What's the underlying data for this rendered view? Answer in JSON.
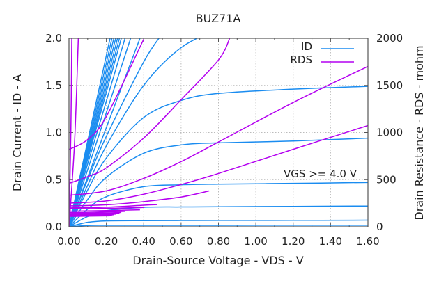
{
  "chart_data": {
    "type": "line",
    "title": "BUZ71A",
    "xlabel": "Drain-Source Voltage - VDS - V",
    "ylabel": "Drain Current - ID - A",
    "y2label": "Drain Resistance - RDS - mohm",
    "xlim": [
      0,
      1.6
    ],
    "ylim": [
      0,
      2.0
    ],
    "y2lim": [
      0,
      2000
    ],
    "grid": true,
    "legend_position": "top-right",
    "xticks": [
      "0.00",
      "0.20",
      "0.40",
      "0.60",
      "0.80",
      "1.00",
      "1.20",
      "1.40",
      "1.60"
    ],
    "yticks": [
      "0.0",
      "0.5",
      "1.0",
      "1.5",
      "2.0"
    ],
    "y2ticks": [
      "0",
      "500",
      "1000",
      "1500",
      "2000"
    ],
    "annotation": "VGS >= 4.0 V",
    "colors": {
      "ID": "#1a8cf0",
      "RDS": "#b400f0"
    },
    "series": [
      {
        "name": "ID",
        "axis": "y",
        "curves": [
          {
            "x": [
              0,
              0.1,
              0.2,
              0.4,
              0.6,
              0.8,
              1.2,
              1.6
            ],
            "y": [
              0,
              0.013,
              0.015,
              0.015,
              0.015,
              0.015,
              0.016,
              0.016
            ]
          },
          {
            "x": [
              0,
              0.1,
              0.2,
              0.4,
              0.6,
              0.8,
              1.2,
              1.6
            ],
            "y": [
              0,
              0.047,
              0.062,
              0.065,
              0.066,
              0.067,
              0.068,
              0.07
            ]
          },
          {
            "x": [
              0,
              0.1,
              0.2,
              0.4,
              0.6,
              0.8,
              1.2,
              1.6
            ],
            "y": [
              0,
              0.108,
              0.171,
              0.206,
              0.21,
              0.212,
              0.216,
              0.22
            ]
          },
          {
            "x": [
              0,
              0.1,
              0.2,
              0.4,
              0.6,
              0.8,
              1.2,
              1.6
            ],
            "y": [
              0,
              0.188,
              0.32,
              0.425,
              0.445,
              0.452,
              0.46,
              0.47
            ]
          },
          {
            "x": [
              0,
              0.1,
              0.2,
              0.4,
              0.6,
              0.8,
              1.2,
              1.6
            ],
            "y": [
              0,
              0.29,
              0.525,
              0.78,
              0.868,
              0.89,
              0.91,
              0.94
            ]
          },
          {
            "x": [
              0,
              0.1,
              0.2,
              0.4,
              0.6,
              0.8,
              1.2,
              1.6
            ],
            "y": [
              0,
              0.39,
              0.73,
              1.16,
              1.34,
              1.415,
              1.46,
              1.49
            ]
          },
          {
            "x": [
              0,
              0.1,
              0.2,
              0.4,
              0.6,
              0.8
            ],
            "y": [
              0,
              0.44,
              0.86,
              1.5,
              1.9,
              2.1
            ]
          },
          {
            "x": [
              0,
              0.1,
              0.2,
              0.4,
              0.5
            ],
            "y": [
              0,
              0.5,
              0.96,
              1.75,
              2.05
            ]
          },
          {
            "x": [
              0,
              0.38
            ],
            "y": [
              0,
              2.0
            ]
          },
          {
            "x": [
              0,
              0.33
            ],
            "y": [
              0,
              2.0
            ]
          },
          {
            "x": [
              0,
              0.3
            ],
            "y": [
              0,
              2.0
            ]
          },
          {
            "x": [
              0,
              0.28
            ],
            "y": [
              0,
              2.0
            ]
          },
          {
            "x": [
              0,
              0.27
            ],
            "y": [
              0,
              2.0
            ]
          },
          {
            "x": [
              0,
              0.26
            ],
            "y": [
              0,
              2.0
            ]
          },
          {
            "x": [
              0,
              0.25
            ],
            "y": [
              0,
              2.0
            ]
          },
          {
            "x": [
              0,
              0.24
            ],
            "y": [
              0,
              2.0
            ]
          },
          {
            "x": [
              0,
              0.23
            ],
            "y": [
              0,
              2.0
            ]
          },
          {
            "x": [
              0,
              0.22
            ],
            "y": [
              0,
              2.0
            ]
          }
        ]
      },
      {
        "name": "RDS",
        "axis": "y2",
        "curves": [
          {
            "x": [
              0,
              0.01,
              0.015
            ],
            "y": [
              0,
              1000,
              2000
            ]
          },
          {
            "x": [
              0,
              0.03,
              0.05
            ],
            "y": [
              0,
              900,
              2000
            ]
          },
          {
            "x": [
              0,
              0.1,
              0.2,
              0.4
            ],
            "y": [
              820,
              926,
              1170,
              1990
            ]
          },
          {
            "x": [
              0,
              0.1,
              0.2,
              0.4,
              0.6,
              0.8,
              0.86
            ],
            "y": [
              460,
              532,
              625,
              941,
              1348,
              1770,
              2000
            ]
          },
          {
            "x": [
              0,
              0.2,
              0.4,
              0.6,
              0.8,
              1.2,
              1.6
            ],
            "y": [
              333,
              381,
              513,
              691,
              899,
              1319,
              1702
            ]
          },
          {
            "x": [
              0,
              0.2,
              0.4,
              0.6,
              0.8,
              1.2,
              1.6
            ],
            "y": [
              250,
              274,
              345,
              448,
              565,
              822,
              1074
            ]
          },
          {
            "x": [
              0,
              0.2,
              0.4,
              0.6,
              0.75
            ],
            "y": [
              222,
              233,
              267,
              316,
              380
            ]
          },
          {
            "x": [
              0,
              0.2,
              0.4,
              0.47
            ],
            "y": [
              200,
              208,
              229,
              235
            ]
          },
          {
            "x": [
              0,
              0.2,
              0.4
            ],
            "y": [
              190,
              195,
              205
            ]
          },
          {
            "x": [
              0,
              0.2,
              0.38
            ],
            "y": [
              165,
              172,
              180
            ]
          },
          {
            "x": [
              0,
              0.2,
              0.3
            ],
            "y": [
              150,
              158,
              163
            ]
          },
          {
            "x": [
              0,
              0.2,
              0.28
            ],
            "y": [
              140,
              147,
              152
            ]
          },
          {
            "x": [
              0,
              0.2,
              0.27
            ],
            "y": [
              135,
              142,
              146
            ]
          },
          {
            "x": [
              0,
              0.2,
              0.26
            ],
            "y": [
              130,
              137,
              140
            ]
          },
          {
            "x": [
              0,
              0.2,
              0.25
            ],
            "y": [
              125,
              131,
              134
            ]
          },
          {
            "x": [
              0,
              0.2,
              0.24
            ],
            "y": [
              120,
              125,
              128
            ]
          },
          {
            "x": [
              0,
              0.2,
              0.23
            ],
            "y": [
              115,
              120,
              122
            ]
          },
          {
            "x": [
              0,
              0.2,
              0.22
            ],
            "y": [
              110,
              115,
              117
            ]
          }
        ]
      }
    ]
  }
}
